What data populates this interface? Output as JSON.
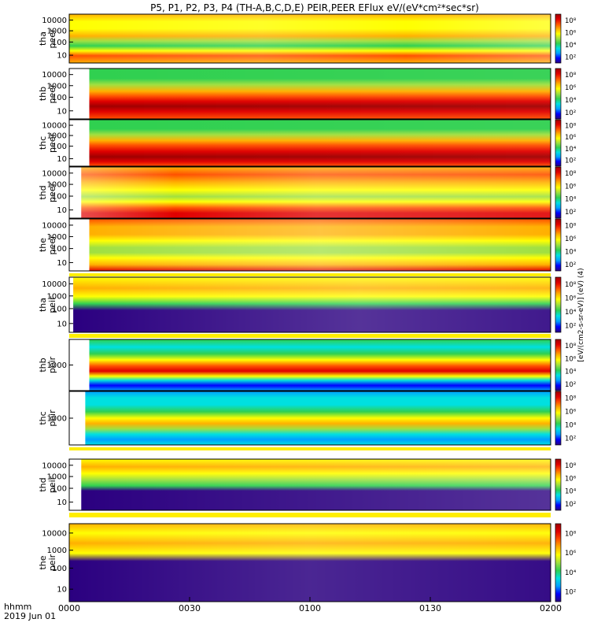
{
  "title": "P5, P1, P2, P3, P4 (TH-A,B,C,D,E) PEIR,PEER EFlux eV/(eV*cm²*sec*sr)",
  "time_axis": {
    "label_line1": "hhmm",
    "label_line2": "2019 Jun 01",
    "ticks": [
      "0000",
      "0030",
      "0100",
      "0130",
      "0200"
    ]
  },
  "colorbar": {
    "tick_labels": [
      "10⁸",
      "10⁶",
      "10⁴",
      "10²"
    ],
    "unit_label": "[eV/(cm2-s-sr-eV)] (eV) (4)"
  },
  "colors": {
    "background": "#ffffff",
    "no_data": "#ffffff",
    "fill_gap": "#000000",
    "separator": "#ffee00",
    "colormap": [
      "#2b0080",
      "#0000ff",
      "#00a0ff",
      "#00e0e0",
      "#30d050",
      "#a0e040",
      "#ffff00",
      "#ffb000",
      "#ff5000",
      "#e00000",
      "#a00000"
    ]
  },
  "chart_data": [
    {
      "type": "heatmap",
      "probe": "tha",
      "instrument": "peer",
      "ylabel": "tha\npeer",
      "yscale": "log",
      "y_ticks": [
        "10000",
        "1000",
        "100",
        "10"
      ],
      "data_start_hhmm": "0000",
      "dominant_eflux": [
        "10⁶",
        "10⁸"
      ]
    },
    {
      "type": "heatmap",
      "probe": "thb",
      "instrument": "peer",
      "ylabel": "thb\npeer",
      "yscale": "log",
      "y_ticks": [
        "10000",
        "1000",
        "100",
        "10"
      ],
      "data_start_hhmm": "0005",
      "dominant_eflux": [
        "10⁴",
        "10⁸"
      ]
    },
    {
      "type": "heatmap",
      "probe": "thc",
      "instrument": "peer",
      "ylabel": "thc\npeer",
      "yscale": "log",
      "y_ticks": [
        "10000",
        "1000",
        "100",
        "10"
      ],
      "data_start_hhmm": "0005",
      "dominant_eflux": [
        "10⁴",
        "10⁸"
      ]
    },
    {
      "type": "heatmap",
      "probe": "thd",
      "instrument": "peer",
      "ylabel": "thd\npeer",
      "yscale": "log",
      "y_ticks": [
        "10000",
        "1000",
        "100",
        "10"
      ],
      "data_start_hhmm": "0003",
      "dominant_eflux": [
        "10⁴",
        "10⁸"
      ]
    },
    {
      "type": "heatmap",
      "probe": "the",
      "instrument": "peer",
      "ylabel": "the\npeer",
      "yscale": "log",
      "y_ticks": [
        "10000",
        "1000",
        "100",
        "10"
      ],
      "data_start_hhmm": "0005",
      "dominant_eflux": [
        "10⁵",
        "10⁸"
      ]
    },
    {
      "type": "heatmap",
      "probe": "tha",
      "instrument": "peir",
      "ylabel": "tha\npeir",
      "yscale": "log",
      "y_ticks": [
        "10000",
        "1000",
        "100",
        "10"
      ],
      "data_start_hhmm": "0001",
      "dominant_eflux": [
        "10⁴",
        "10⁷"
      ]
    },
    {
      "type": "heatmap",
      "probe": "thb",
      "instrument": "peir",
      "ylabel": "thb\npeir",
      "yscale": "log",
      "y_ticks": [
        "1000"
      ],
      "data_start_hhmm": "0005",
      "dominant_eflux": [
        "10²",
        "10⁸"
      ]
    },
    {
      "type": "heatmap",
      "probe": "thc",
      "instrument": "peir",
      "ylabel": "thc\npeir",
      "yscale": "log",
      "y_ticks": [
        "1000"
      ],
      "data_start_hhmm": "0004",
      "dominant_eflux": [
        "10²",
        "10⁷"
      ]
    },
    {
      "type": "heatmap",
      "probe": "thd",
      "instrument": "peir",
      "ylabel": "thd\npeir",
      "yscale": "log",
      "y_ticks": [
        "10000",
        "1000",
        "100",
        "10"
      ],
      "data_start_hhmm": "0003",
      "dominant_eflux": [
        "10⁴",
        "10⁷"
      ]
    },
    {
      "type": "heatmap",
      "probe": "the",
      "instrument": "peir",
      "ylabel": "the\npeir",
      "yscale": "log",
      "y_ticks": [
        "10000",
        "1000",
        "100",
        "10"
      ],
      "data_start_hhmm": "0000",
      "dominant_eflux": [
        "10⁴",
        "10⁷"
      ]
    }
  ]
}
